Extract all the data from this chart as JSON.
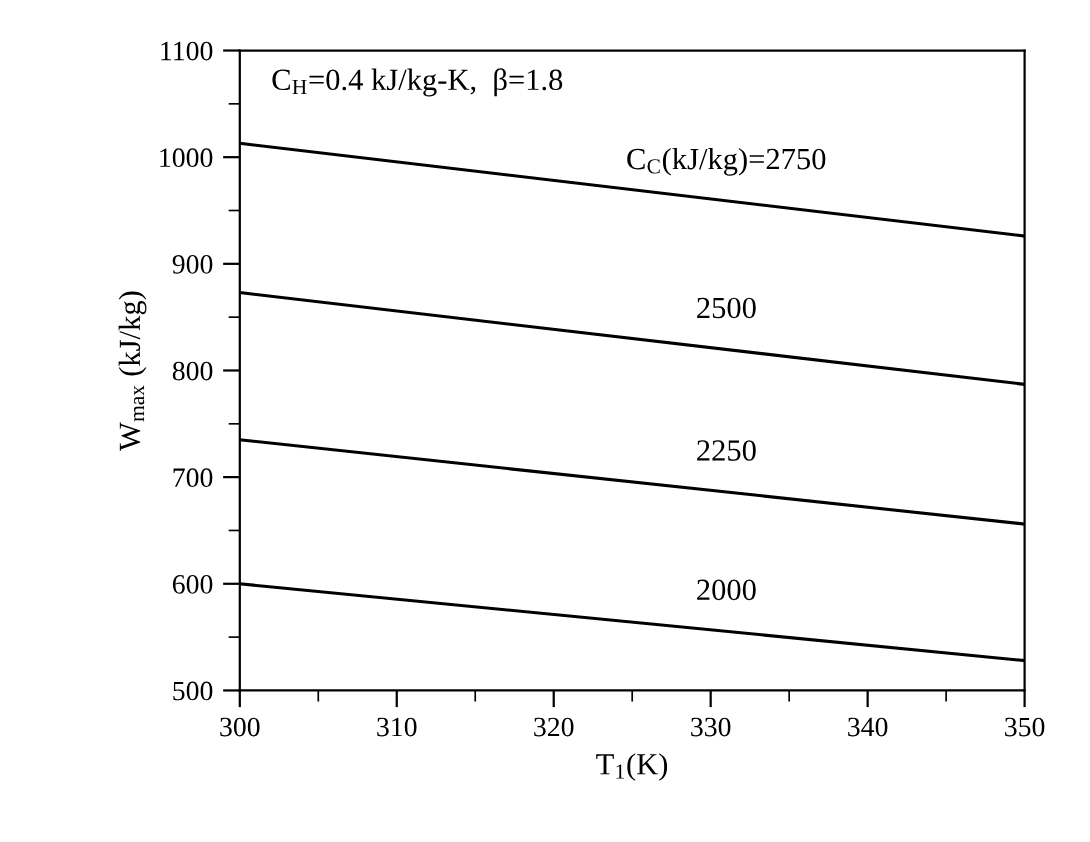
{
  "chart_data": {
    "type": "line",
    "xlabel": "T$_{1}$(K)",
    "ylabel": "W$_{max}$ (kJ/kg)",
    "x": [
      300,
      350
    ],
    "series": [
      {
        "name": "C$_{C}$(kJ/kg)=2750",
        "color": "#000000",
        "values": [
          1013,
          926
        ]
      },
      {
        "name": "2500",
        "color": "#000000",
        "values": [
          873,
          787
        ]
      },
      {
        "name": "2250",
        "color": "#000000",
        "values": [
          735,
          656
        ]
      },
      {
        "name": "2000",
        "color": "#000000",
        "values": [
          600,
          528
        ]
      }
    ],
    "xlim": [
      300,
      350
    ],
    "xticks": [
      300,
      310,
      320,
      330,
      340,
      350
    ],
    "ylim": [
      500,
      1100
    ],
    "yticks": [
      500,
      600,
      700,
      800,
      900,
      1000,
      1100
    ],
    "grid": false,
    "legend": false,
    "marker": "none",
    "line_style": "solid",
    "annotations": [
      "C$_{H}$=0.4 kJ/kg-K,  β=1.8"
    ]
  }
}
